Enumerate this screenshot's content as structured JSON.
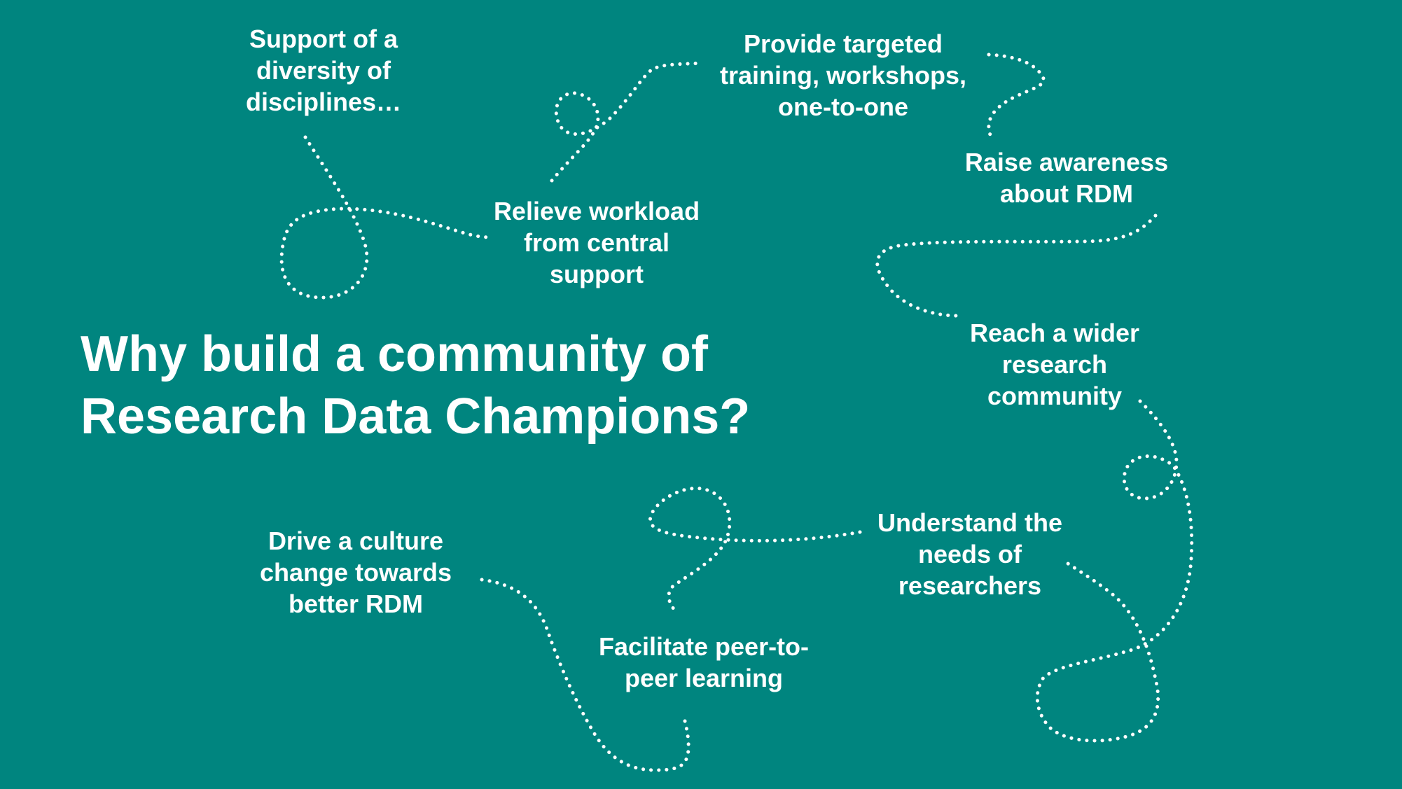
{
  "slide": {
    "title_line1": "Why build a community of",
    "title_line2": "Research Data Champions?",
    "background_color": "#00857F",
    "text_color": "#FFFFFF"
  },
  "reasons": [
    {
      "lines": [
        "Support of a",
        "diversity of",
        "disciplines…"
      ]
    },
    {
      "lines": [
        "Provide targeted",
        "training, workshops,",
        "one-to-one"
      ]
    },
    {
      "lines": [
        "Raise awareness",
        "about RDM"
      ]
    },
    {
      "lines": [
        "Relieve workload",
        "from central",
        "support"
      ]
    },
    {
      "lines": [
        "Reach a wider",
        "research",
        "community"
      ]
    },
    {
      "lines": [
        "Understand the",
        "needs of",
        "researchers"
      ]
    },
    {
      "lines": [
        "Drive a culture",
        "change towards",
        "better RDM"
      ]
    },
    {
      "lines": [
        "Facilitate peer-to-",
        "peer learning"
      ]
    }
  ]
}
